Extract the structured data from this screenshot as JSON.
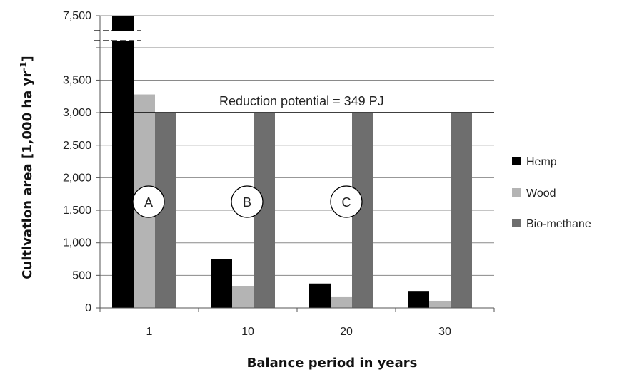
{
  "chart_data": {
    "type": "bar",
    "categories": [
      "1",
      "10",
      "20",
      "30"
    ],
    "xlabel": "Balance period in years",
    "ylabel": "Cultivation area  [1,000 ha yr",
    "ylabel_superscript": "-1",
    "ylabel_close": "]",
    "series": [
      {
        "name": "Hemp",
        "values": [
          7500,
          750,
          375,
          250
        ],
        "color": "#000000"
      },
      {
        "name": "Wood",
        "values": [
          3280,
          330,
          165,
          110
        ],
        "color": "#b4b4b4"
      },
      {
        "name": "Bio-methane",
        "values": [
          3000,
          3000,
          3000,
          3000
        ],
        "color": "#6e6e6e"
      }
    ],
    "y_ticks": [
      "0",
      "500",
      "1,000",
      "1,500",
      "2,000",
      "2,500",
      "3,000",
      "3,500",
      "7,500"
    ],
    "y_tick_values": [
      0,
      500,
      1000,
      1500,
      2000,
      2500,
      3000,
      3500,
      7500
    ],
    "ylim": [
      0,
      7500
    ],
    "axis_break": true,
    "grid": true,
    "legend_position": "right",
    "reference_line": {
      "value": 3000,
      "label": "Reduction potential = 349 PJ"
    },
    "markers": [
      "A",
      "B",
      "C"
    ]
  }
}
